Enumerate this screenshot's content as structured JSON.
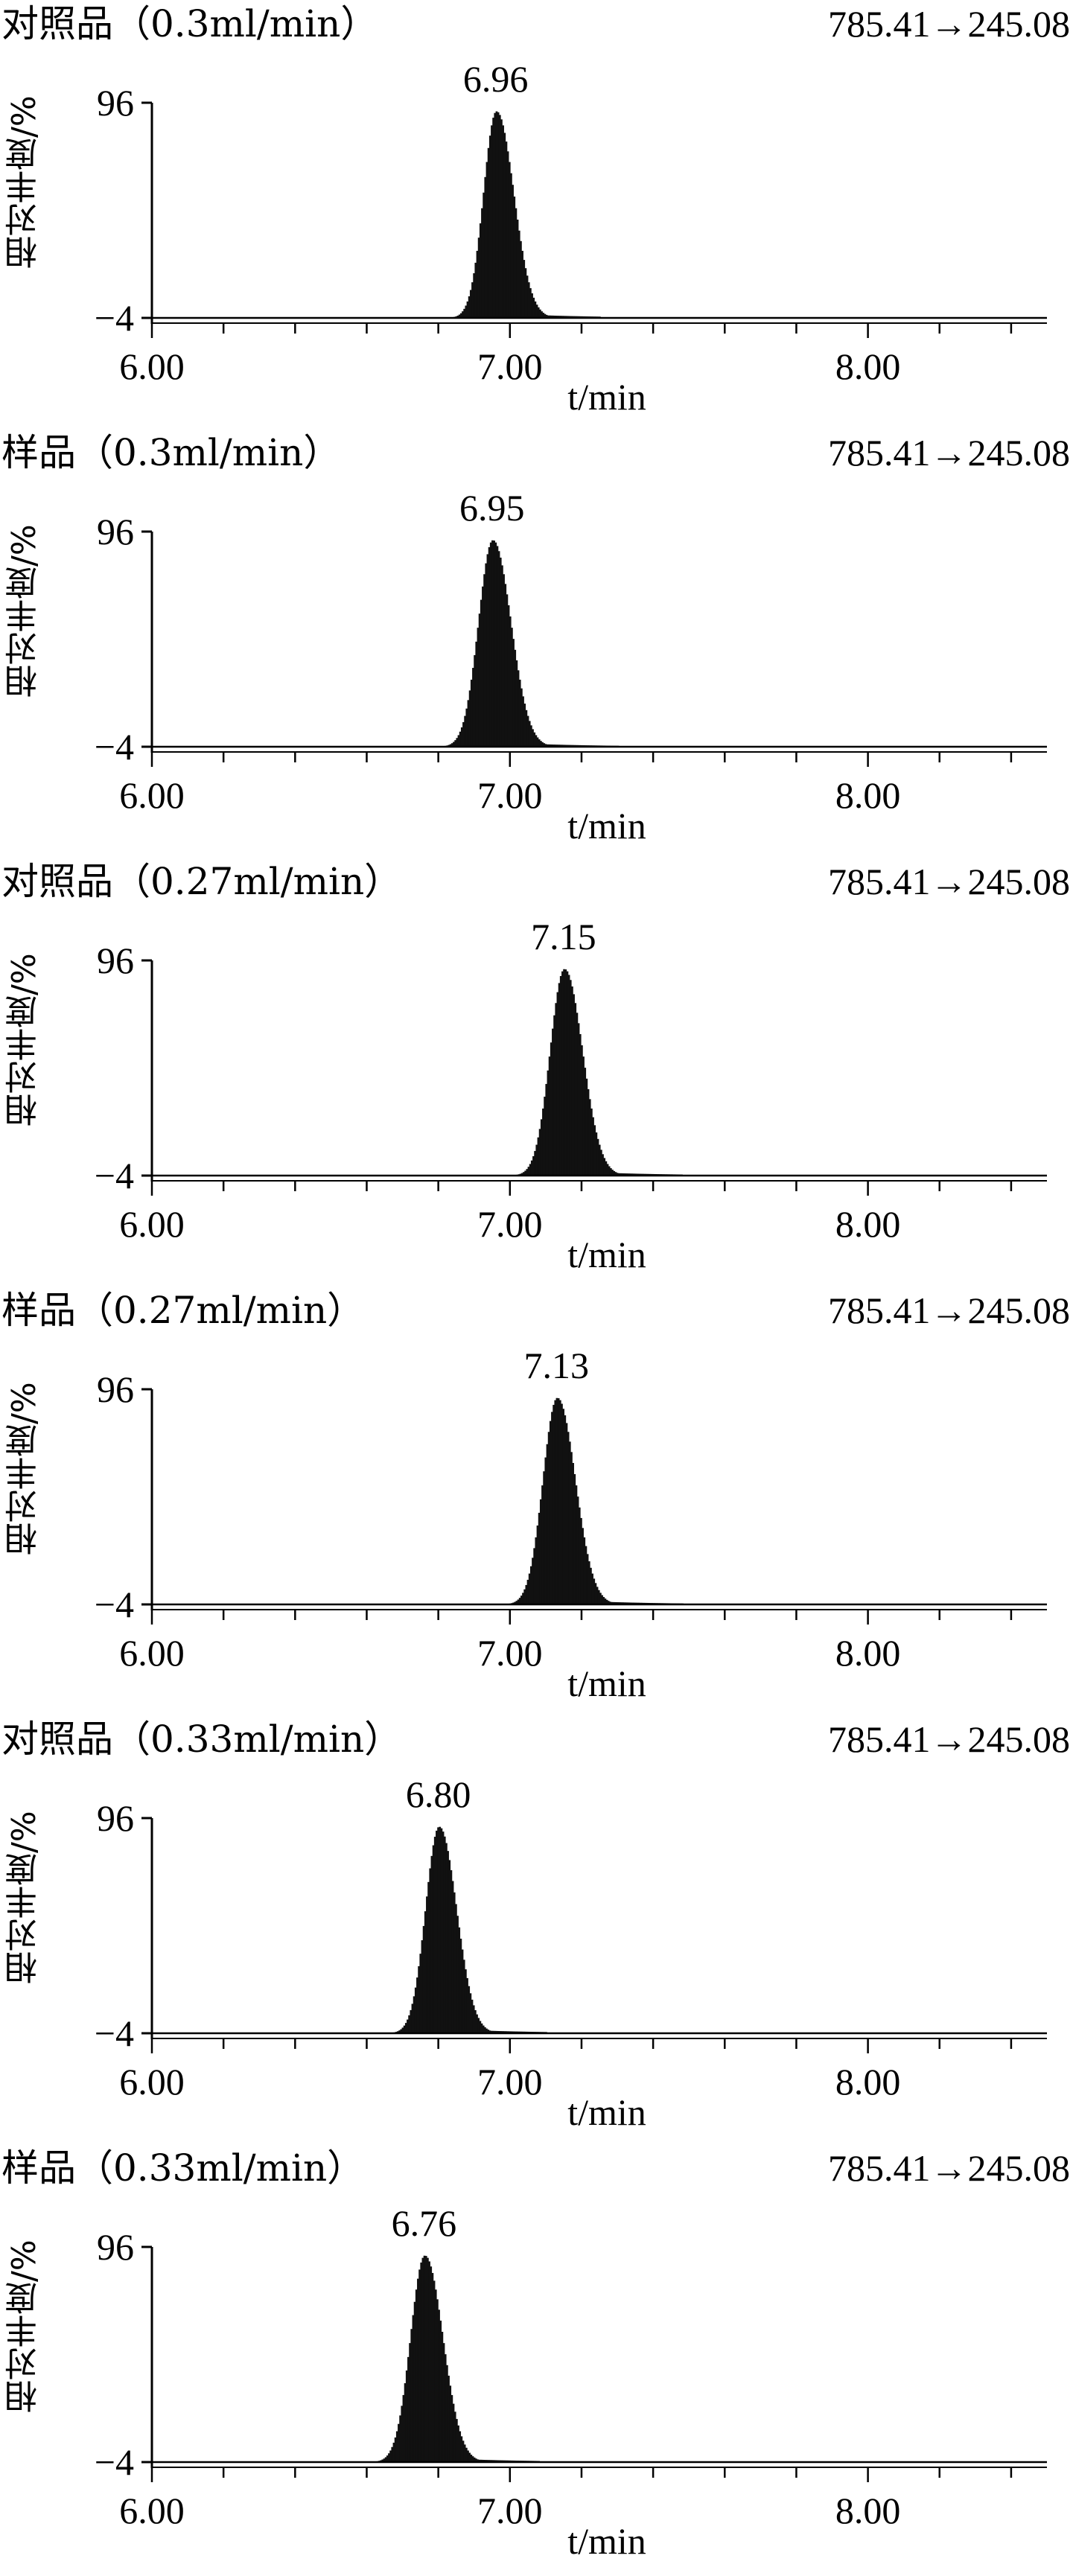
{
  "chart_data": [
    {
      "type": "line",
      "title": "对照品（0.3ml/min）",
      "transition": "785.41→245.08",
      "ylabel": "相对丰度/%",
      "xlabel": "t/min",
      "xlim": [
        6.0,
        8.5
      ],
      "ylim": [
        -4,
        96
      ],
      "xticks": [
        "6.00",
        "7.00",
        "8.00"
      ],
      "yticks": [
        "96",
        "−4"
      ],
      "peak": {
        "rt": 6.96,
        "label": "6.96",
        "height": 96,
        "sigma_left": 0.036,
        "sigma_right": 0.048,
        "tail_until": 7.25
      }
    },
    {
      "type": "line",
      "title": "样品（0.3ml/min）",
      "transition": "785.41→245.08",
      "ylabel": "相对丰度/%",
      "xlabel": "t/min",
      "xlim": [
        6.0,
        8.5
      ],
      "ylim": [
        -4,
        96
      ],
      "xticks": [
        "6.00",
        "7.00",
        "8.00"
      ],
      "yticks": [
        "96",
        "−4"
      ],
      "peak": {
        "rt": 6.95,
        "label": "6.95",
        "height": 96,
        "sigma_left": 0.04,
        "sigma_right": 0.05,
        "tail_until": 7.3
      }
    },
    {
      "type": "line",
      "title": "对照品（0.27ml/min）",
      "transition": "785.41→245.08",
      "ylabel": "相对丰度/%",
      "xlabel": "t/min",
      "xlim": [
        6.0,
        8.5
      ],
      "ylim": [
        -4,
        96
      ],
      "xticks": [
        "6.00",
        "7.00",
        "8.00"
      ],
      "yticks": [
        "96",
        "−4"
      ],
      "peak": {
        "rt": 7.15,
        "label": "7.15",
        "height": 96,
        "sigma_left": 0.04,
        "sigma_right": 0.05,
        "tail_until": 7.48
      }
    },
    {
      "type": "line",
      "title": "样品（0.27ml/min）",
      "transition": "785.41→245.08",
      "ylabel": "相对丰度/%",
      "xlabel": "t/min",
      "xlim": [
        6.0,
        8.5
      ],
      "ylim": [
        -4,
        96
      ],
      "xticks": [
        "6.00",
        "7.00",
        "8.00"
      ],
      "yticks": [
        "96",
        "−4"
      ],
      "peak": {
        "rt": 7.13,
        "label": "7.13",
        "height": 96,
        "sigma_left": 0.04,
        "sigma_right": 0.05,
        "tail_until": 7.48
      }
    },
    {
      "type": "line",
      "title": "对照品（0.33ml/min）",
      "transition": "785.41→245.08",
      "ylabel": "相对丰度/%",
      "xlabel": "t/min",
      "xlim": [
        6.0,
        8.5
      ],
      "ylim": [
        -4,
        96
      ],
      "xticks": [
        "6.00",
        "7.00",
        "8.00"
      ],
      "yticks": [
        "96",
        "−4"
      ],
      "peak": {
        "rt": 6.8,
        "label": "6.80",
        "height": 96,
        "sigma_left": 0.038,
        "sigma_right": 0.048,
        "tail_until": 7.1
      }
    },
    {
      "type": "line",
      "title": "样品（0.33ml/min）",
      "transition": "785.41→245.08",
      "ylabel": "相对丰度/%",
      "xlabel": "t/min",
      "xlim": [
        6.0,
        8.5
      ],
      "ylim": [
        -4,
        96
      ],
      "xticks": [
        "6.00",
        "7.00",
        "8.00"
      ],
      "yticks": [
        "96",
        "−4"
      ],
      "peak": {
        "rt": 6.76,
        "label": "6.76",
        "height": 96,
        "sigma_left": 0.04,
        "sigma_right": 0.05,
        "tail_until": 7.08
      }
    }
  ]
}
